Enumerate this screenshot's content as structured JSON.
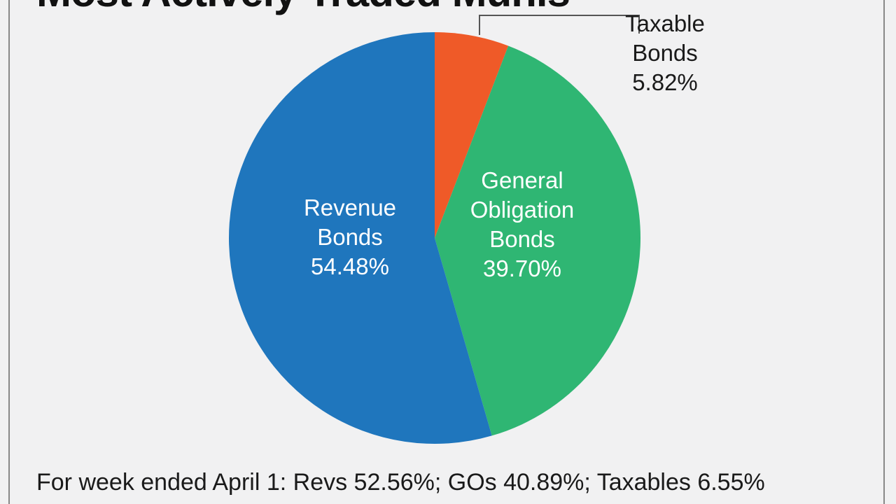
{
  "title": "Most Actively Traded Munis",
  "footnote": "For week ended April 1: Revs 52.56%; GOs 40.89%; Taxables 6.55%",
  "chart_data": {
    "type": "pie",
    "title": "Most Actively Traded Munis",
    "slices": [
      {
        "name": "Taxable Bonds",
        "label_lines": [
          "Taxable",
          "Bonds",
          "5.82%"
        ],
        "value": 5.82,
        "color": "#ef5a28"
      },
      {
        "name": "General Obligation Bonds",
        "label_lines": [
          "General",
          "Obligation",
          "Bonds",
          "39.70%"
        ],
        "value": 39.7,
        "color": "#2fb673"
      },
      {
        "name": "Revenue Bonds",
        "label_lines": [
          "Revenue",
          "Bonds",
          "54.48%"
        ],
        "value": 54.48,
        "color": "#1f76bd"
      }
    ],
    "start_angle_deg": 0,
    "direction": "clockwise"
  }
}
